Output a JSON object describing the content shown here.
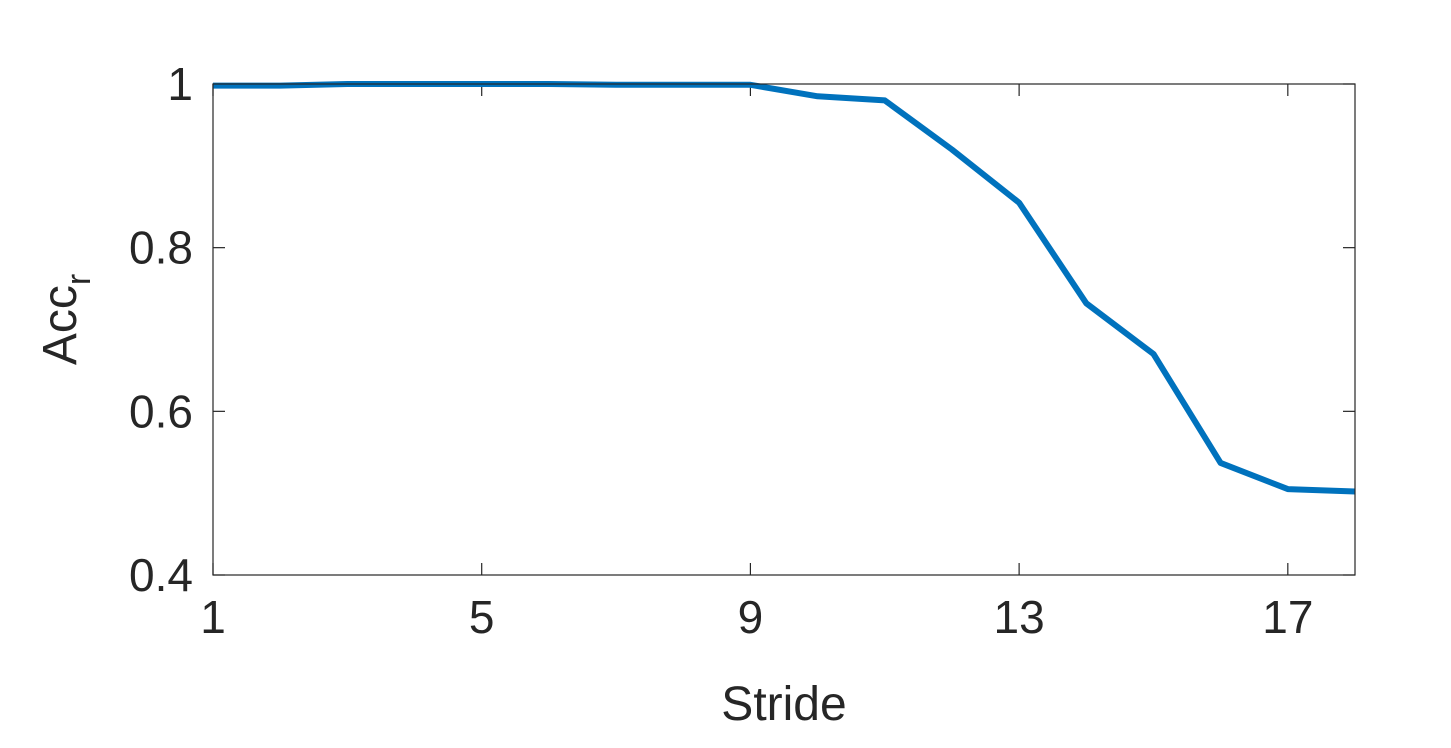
{
  "chart_data": {
    "type": "line",
    "title": "",
    "xlabel": "Stride",
    "ylabel": "Acc",
    "ylabel_subscript": "r",
    "xlim": [
      1,
      18
    ],
    "ylim": [
      0.4,
      1
    ],
    "xticks": [
      1,
      5,
      9,
      13,
      17
    ],
    "xtick_labels": [
      "1",
      "5",
      "9",
      "13",
      "17"
    ],
    "yticks": [
      0.4,
      0.6,
      0.8,
      1
    ],
    "ytick_labels": [
      "0.4",
      "0.6",
      "0.8",
      "1"
    ],
    "grid": false,
    "series": [
      {
        "color": "#0072BD",
        "x": [
          1,
          2,
          3,
          4,
          5,
          6,
          7,
          8,
          9,
          10,
          11,
          12,
          13,
          14,
          15,
          16,
          17,
          18
        ],
        "y": [
          0.998,
          0.998,
          1.0,
          1.0,
          1.0,
          1.0,
          0.999,
          0.999,
          0.999,
          0.985,
          0.98,
          0.92,
          0.855,
          0.732,
          0.67,
          0.537,
          0.505,
          0.502
        ]
      }
    ]
  }
}
